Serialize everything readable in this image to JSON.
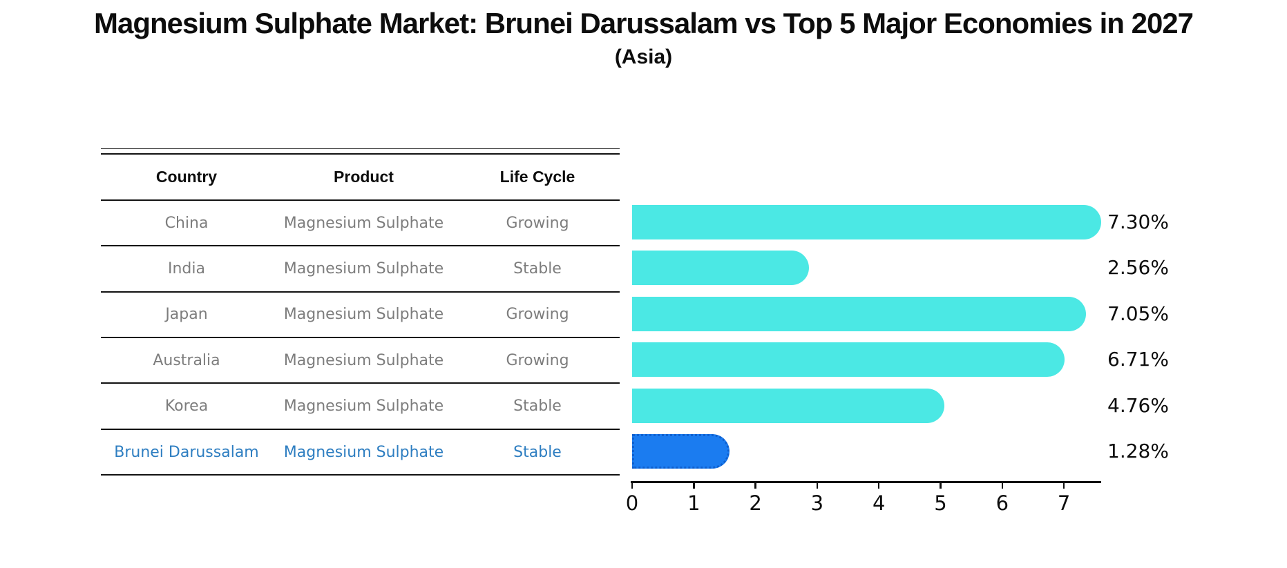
{
  "title": "Magnesium Sulphate Market: Brunei Darussalam vs Top 5 Major Economies in 2027",
  "subtitle": "(Asia)",
  "table": {
    "headers": [
      "Country",
      "Product",
      "Life Cycle"
    ],
    "rows": [
      {
        "country": "China",
        "product": "Magnesium Sulphate",
        "life_cycle": "Growing",
        "highlight": false
      },
      {
        "country": "India",
        "product": "Magnesium Sulphate",
        "life_cycle": "Stable",
        "highlight": false
      },
      {
        "country": "Japan",
        "product": "Magnesium Sulphate",
        "life_cycle": "Growing",
        "highlight": false
      },
      {
        "country": "Australia",
        "product": "Magnesium Sulphate",
        "life_cycle": "Growing",
        "highlight": false
      },
      {
        "country": "Korea",
        "product": "Magnesium Sulphate",
        "life_cycle": "Stable",
        "highlight": false
      },
      {
        "country": "Brunei Darussalam",
        "product": "Magnesium Sulphate",
        "life_cycle": "Stable",
        "highlight": true
      }
    ]
  },
  "chart_data": {
    "type": "bar",
    "orientation": "horizontal",
    "title": "Magnesium Sulphate Market: Brunei Darussalam vs Top 5 Major Economies in 2027 (Asia)",
    "categories": [
      "China",
      "India",
      "Japan",
      "Australia",
      "Korea",
      "Brunei Darussalam"
    ],
    "values": [
      7.3,
      2.56,
      7.05,
      6.71,
      4.76,
      1.28
    ],
    "value_labels": [
      "7.30%",
      "2.56%",
      "7.05%",
      "6.71%",
      "4.76%",
      "1.28%"
    ],
    "x_ticks": [
      "0",
      "1",
      "2",
      "3",
      "4",
      "5",
      "6",
      "7"
    ],
    "xlim": [
      0,
      7.6
    ],
    "grid": false,
    "legend": null,
    "highlight_index": 5,
    "bar_color": "#4BE8E4",
    "highlight_color": "#1B7CF0",
    "highlight_border_color": "#0E5FCE"
  },
  "colors": {
    "row_text": "#7d7d7d",
    "highlight_text": "#2E7EC1",
    "header_text": "#0d0d0d",
    "axis_text": "#0d0d0d"
  }
}
